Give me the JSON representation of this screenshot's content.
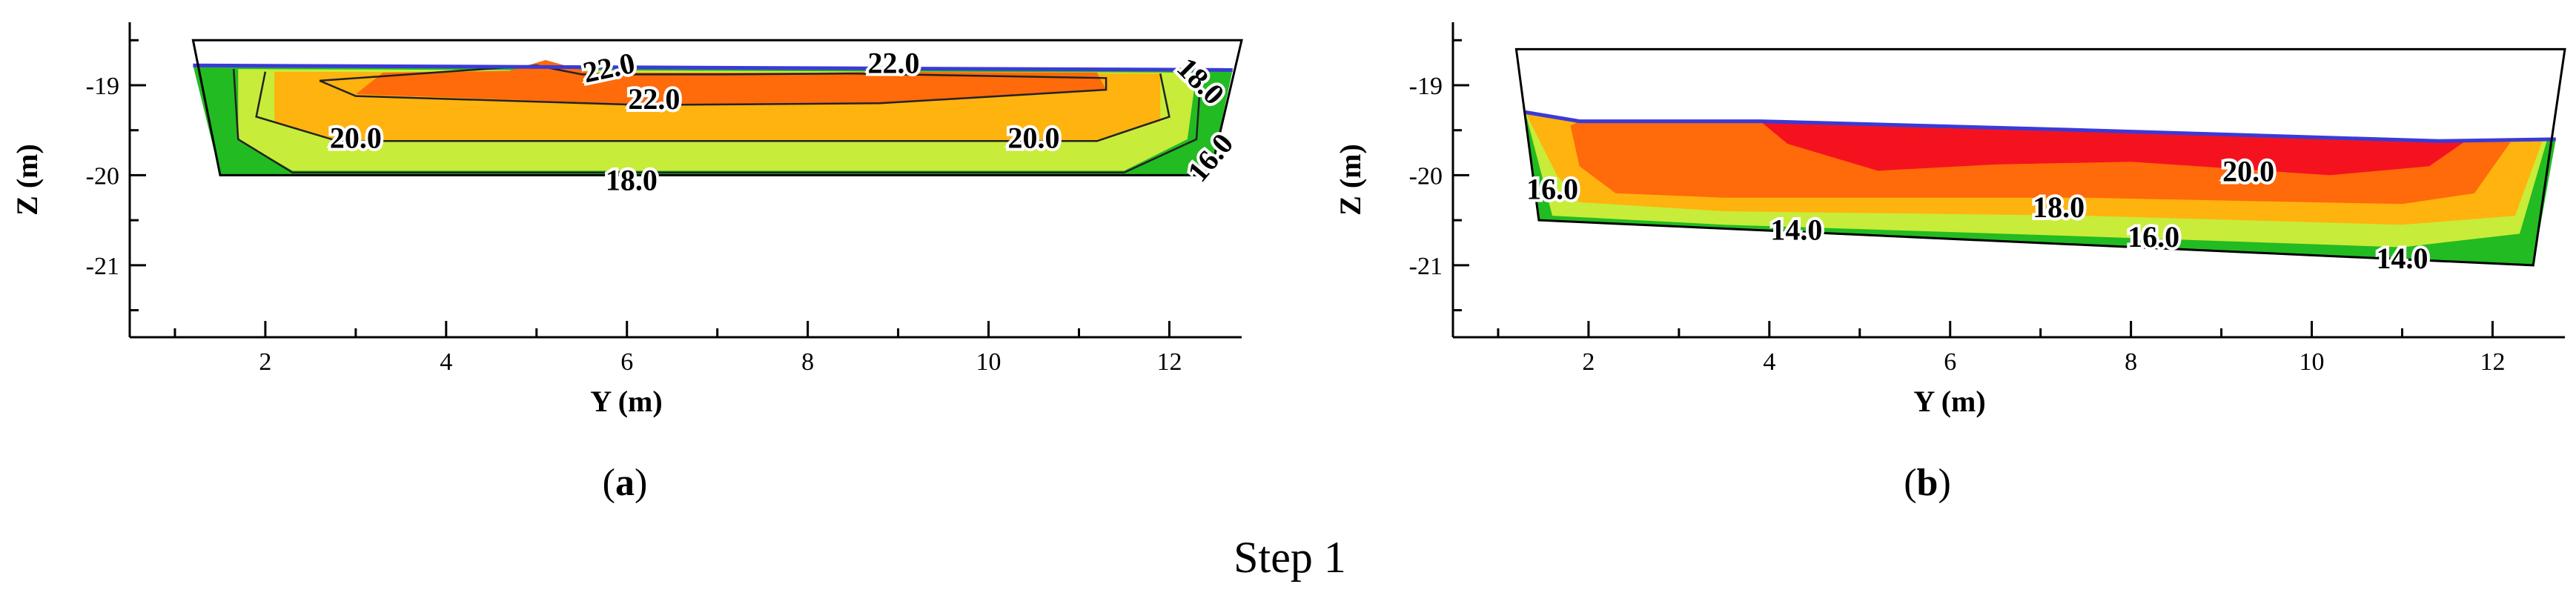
{
  "figure": {
    "footer": "Step 1"
  },
  "chart_data": [
    {
      "type": "heatmap",
      "subplot_label": "a",
      "xlabel": "Y (m)",
      "ylabel": "Z (m)",
      "xlim": [
        0.5,
        12.8
      ],
      "ylim": [
        -21.8,
        -18.3
      ],
      "xticks": [
        2,
        4,
        6,
        8,
        10,
        12
      ],
      "yticks": [
        -19,
        -20,
        -21
      ],
      "levels": [
        {
          "min": 14,
          "max": 16,
          "color": "#22bb22"
        },
        {
          "min": 16,
          "max": 18,
          "color": "#c8ec3a"
        },
        {
          "min": 18,
          "max": 20,
          "color": "#ffb30f"
        },
        {
          "min": 20,
          "max": 22,
          "color": "#ff6a0a"
        },
        {
          "min": 22,
          "max": 24,
          "color": "#f5121f"
        }
      ],
      "domain_outline": [
        [
          1.2,
          -18.5
        ],
        [
          12.8,
          -18.5
        ],
        [
          12.45,
          -20.0
        ],
        [
          1.5,
          -20.0
        ]
      ],
      "free_surface": [
        [
          1.2,
          -18.78
        ],
        [
          12.7,
          -18.83
        ]
      ],
      "regions": [
        {
          "level": 1,
          "points": [
            [
              1.2,
              -18.78
            ],
            [
              12.7,
              -18.83
            ],
            [
              12.45,
              -20.0
            ],
            [
              1.5,
              -20.0
            ]
          ]
        },
        {
          "level": 2,
          "points": [
            [
              1.7,
              -18.82
            ],
            [
              12.3,
              -18.86
            ],
            [
              12.2,
              -19.6
            ],
            [
              11.5,
              -19.95
            ],
            [
              2.3,
              -19.95
            ],
            [
              1.7,
              -19.6
            ]
          ]
        },
        {
          "level": 3,
          "points": [
            [
              2.1,
              -18.85
            ],
            [
              11.9,
              -18.87
            ],
            [
              11.9,
              -19.4
            ],
            [
              11.2,
              -19.62
            ],
            [
              2.8,
              -19.62
            ],
            [
              2.1,
              -19.4
            ]
          ]
        },
        {
          "level": 4,
          "points": [
            [
              3.3,
              -18.86
            ],
            [
              4.7,
              -18.84
            ],
            [
              5.1,
              -18.72
            ],
            [
              5.6,
              -18.86
            ],
            [
              8.1,
              -18.86
            ],
            [
              8.8,
              -18.85
            ],
            [
              11.2,
              -18.86
            ],
            [
              11.3,
              -19.05
            ],
            [
              8.8,
              -19.2
            ],
            [
              6.4,
              -19.22
            ],
            [
              3.0,
              -19.1
            ]
          ]
        }
      ],
      "contour_lines": [
        {
          "value": "22.0",
          "points": [
            [
              2.6,
              -18.95
            ],
            [
              4.0,
              -18.85
            ],
            [
              5.0,
              -18.78
            ],
            [
              5.5,
              -18.88
            ],
            [
              7.0,
              -18.88
            ],
            [
              8.5,
              -18.87
            ],
            [
              11.3,
              -18.92
            ],
            [
              11.3,
              -19.05
            ],
            [
              8.8,
              -19.2
            ],
            [
              6.2,
              -19.22
            ],
            [
              3.0,
              -19.12
            ],
            [
              2.6,
              -18.95
            ]
          ]
        },
        {
          "value": "20.0",
          "points": [
            [
              2.0,
              -18.85
            ],
            [
              1.9,
              -19.35
            ],
            [
              2.8,
              -19.62
            ],
            [
              11.2,
              -19.62
            ],
            [
              12.0,
              -19.35
            ],
            [
              11.9,
              -18.87
            ]
          ]
        },
        {
          "value": "18.0",
          "points": [
            [
              1.65,
              -18.82
            ],
            [
              1.7,
              -19.6
            ],
            [
              2.3,
              -19.97
            ],
            [
              11.5,
              -19.97
            ],
            [
              12.3,
              -19.6
            ],
            [
              12.35,
              -18.86
            ]
          ]
        }
      ],
      "contour_labels": [
        {
          "text": "22.0",
          "x": 5.8,
          "y": -18.8,
          "rotate": -12
        },
        {
          "text": "22.0",
          "x": 8.95,
          "y": -18.75,
          "rotate": 0
        },
        {
          "text": "22.0",
          "x": 6.3,
          "y": -19.15,
          "rotate": 0
        },
        {
          "text": "20.0",
          "x": 3.0,
          "y": -19.58,
          "rotate": 0
        },
        {
          "text": "20.0",
          "x": 10.5,
          "y": -19.58,
          "rotate": 0
        },
        {
          "text": "18.0",
          "x": 6.05,
          "y": -20.05,
          "rotate": 0
        },
        {
          "text": "18.0",
          "x": 12.35,
          "y": -18.95,
          "rotate": 45
        },
        {
          "text": "16.0",
          "x": 12.45,
          "y": -19.8,
          "rotate": -50
        }
      ]
    },
    {
      "type": "heatmap",
      "subplot_label": "b",
      "xlabel": "Y (m)",
      "ylabel": "Z (m)",
      "xlim": [
        0.5,
        12.8
      ],
      "ylim": [
        -21.8,
        -18.3
      ],
      "xticks": [
        2,
        4,
        6,
        8,
        10,
        12
      ],
      "yticks": [
        -19,
        -20,
        -21
      ],
      "levels": [
        {
          "min": 12,
          "max": 14,
          "color": "#22bb22"
        },
        {
          "min": 14,
          "max": 16,
          "color": "#c8ec3a"
        },
        {
          "min": 16,
          "max": 18,
          "color": "#ffb30f"
        },
        {
          "min": 18,
          "max": 20,
          "color": "#ff6a0a"
        },
        {
          "min": 20,
          "max": 22,
          "color": "#f5121f"
        }
      ],
      "domain_outline": [
        [
          1.2,
          -18.6
        ],
        [
          12.8,
          -18.6
        ],
        [
          12.45,
          -21.0
        ],
        [
          1.45,
          -20.5
        ]
      ],
      "free_surface": [
        [
          1.3,
          -19.3
        ],
        [
          1.9,
          -19.4
        ],
        [
          3.9,
          -19.4
        ],
        [
          7.5,
          -19.5
        ],
        [
          11.4,
          -19.62
        ],
        [
          12.7,
          -19.6
        ]
      ],
      "regions": [
        {
          "level": 1,
          "points": [
            [
              1.3,
              -19.3
            ],
            [
              1.9,
              -19.4
            ],
            [
              3.9,
              -19.4
            ],
            [
              7.5,
              -19.5
            ],
            [
              11.4,
              -19.62
            ],
            [
              12.7,
              -19.6
            ],
            [
              12.45,
              -21.0
            ],
            [
              1.45,
              -20.5
            ]
          ]
        },
        {
          "level": 2,
          "points": [
            [
              1.3,
              -19.3
            ],
            [
              1.9,
              -19.4
            ],
            [
              3.9,
              -19.4
            ],
            [
              7.5,
              -19.5
            ],
            [
              11.4,
              -19.62
            ],
            [
              12.6,
              -19.62
            ],
            [
              12.3,
              -20.65
            ],
            [
              11.0,
              -20.8
            ],
            [
              7.5,
              -20.68
            ],
            [
              3.5,
              -20.55
            ],
            [
              1.6,
              -20.45
            ]
          ]
        },
        {
          "level": 3,
          "points": [
            [
              1.3,
              -19.3
            ],
            [
              1.9,
              -19.4
            ],
            [
              3.9,
              -19.4
            ],
            [
              7.5,
              -19.5
            ],
            [
              11.4,
              -19.62
            ],
            [
              12.55,
              -19.62
            ],
            [
              12.25,
              -20.45
            ],
            [
              11.0,
              -20.55
            ],
            [
              7.5,
              -20.45
            ],
            [
              3.5,
              -20.4
            ],
            [
              1.9,
              -20.3
            ],
            [
              1.65,
              -20.0
            ]
          ]
        },
        {
          "level": 4,
          "points": [
            [
              1.9,
              -19.4
            ],
            [
              3.9,
              -19.4
            ],
            [
              7.5,
              -19.5
            ],
            [
              11.4,
              -19.62
            ],
            [
              12.2,
              -19.63
            ],
            [
              11.8,
              -20.2
            ],
            [
              11.0,
              -20.32
            ],
            [
              7.5,
              -20.25
            ],
            [
              3.5,
              -20.25
            ],
            [
              2.3,
              -20.2
            ],
            [
              1.9,
              -19.9
            ],
            [
              1.8,
              -19.45
            ]
          ]
        },
        {
          "level": 5,
          "points": [
            [
              3.9,
              -19.4
            ],
            [
              7.5,
              -19.5
            ],
            [
              11.4,
              -19.62
            ],
            [
              11.7,
              -19.62
            ],
            [
              11.3,
              -19.9
            ],
            [
              10.2,
              -20.0
            ],
            [
              8.0,
              -19.85
            ],
            [
              6.5,
              -19.88
            ],
            [
              5.2,
              -19.95
            ],
            [
              4.2,
              -19.65
            ]
          ]
        }
      ],
      "contour_lines": [],
      "contour_labels": [
        {
          "text": "20.0",
          "x": 9.3,
          "y": -19.95,
          "rotate": 0
        },
        {
          "text": "18.0",
          "x": 7.2,
          "y": -20.35,
          "rotate": 0
        },
        {
          "text": "16.0",
          "x": 1.6,
          "y": -20.15,
          "rotate": 0
        },
        {
          "text": "16.0",
          "x": 8.25,
          "y": -20.68,
          "rotate": 0
        },
        {
          "text": "14.0",
          "x": 4.3,
          "y": -20.6,
          "rotate": 0
        },
        {
          "text": "14.0",
          "x": 11.0,
          "y": -20.92,
          "rotate": 0
        }
      ]
    }
  ]
}
